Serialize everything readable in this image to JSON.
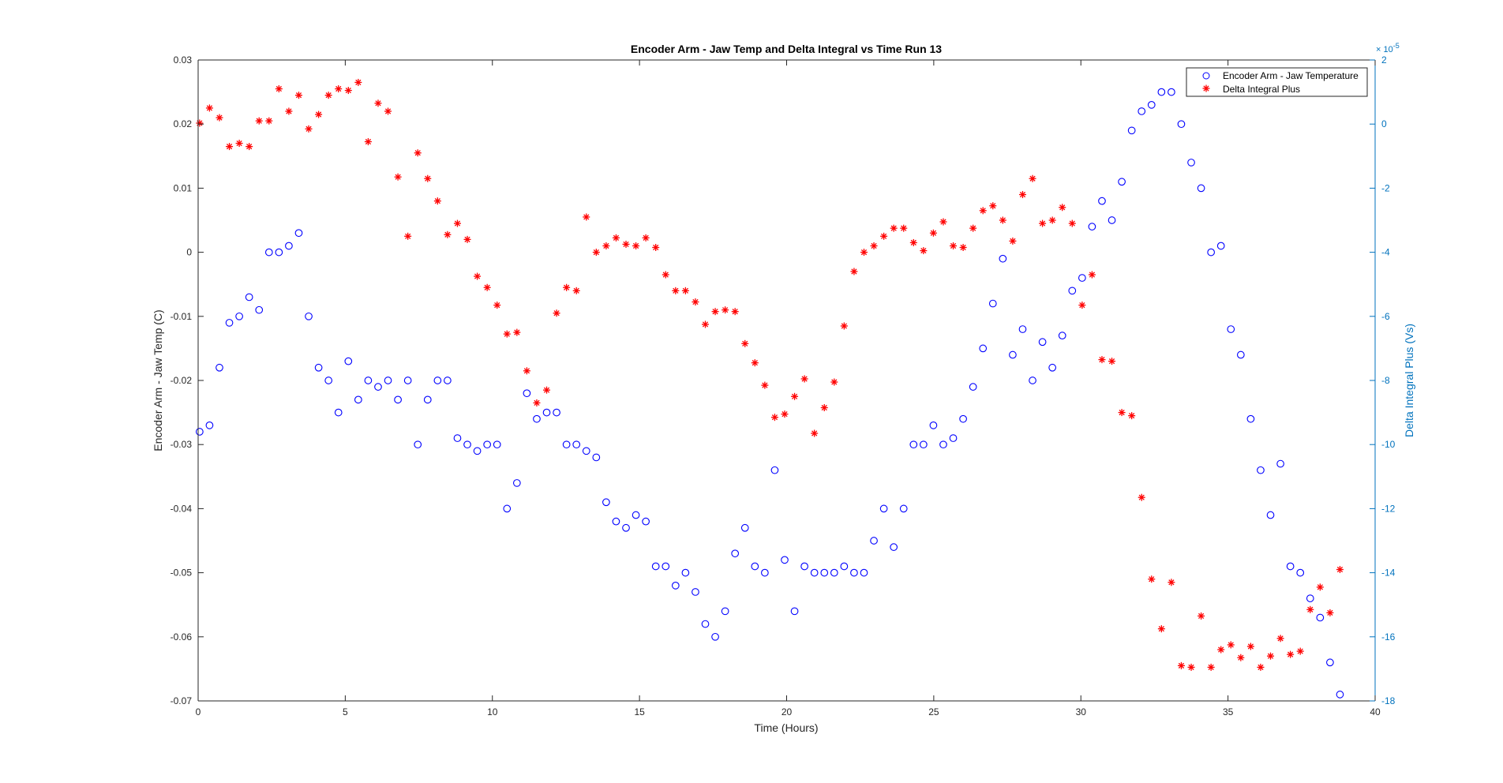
{
  "chart_data": {
    "type": "scatter",
    "title": "Encoder Arm - Jaw Temp and Delta Integral vs Time Run 13",
    "xlabel": "Time (Hours)",
    "ylabel_left": "Encoder Arm - Jaw Temp (C)",
    "ylabel_right": "Delta Integral Plus (Vs)",
    "right_exponent_label": "× 10",
    "right_exponent_power": "-5",
    "xlim": [
      0,
      40
    ],
    "ylim_left": [
      -0.07,
      0.03
    ],
    "ylim_right": [
      -18,
      2
    ],
    "x_start": 0.05,
    "x_step": 0.337,
    "xticks": [
      "0",
      "5",
      "10",
      "15",
      "20",
      "25",
      "30",
      "35",
      "40"
    ],
    "xtick_values": [
      0,
      5,
      10,
      15,
      20,
      25,
      30,
      35,
      40
    ],
    "yticks_left": [
      "0.03",
      "0.02",
      "0.01",
      "0",
      "-0.01",
      "-0.02",
      "-0.03",
      "-0.04",
      "-0.05",
      "-0.06",
      "-0.07"
    ],
    "ytick_values_left": [
      0.03,
      0.02,
      0.01,
      0,
      -0.01,
      -0.02,
      -0.03,
      -0.04,
      -0.05,
      -0.06,
      -0.07
    ],
    "yticks_right": [
      "2",
      "0",
      "-2",
      "-4",
      "-6",
      "-8",
      "-10",
      "-12",
      "-14",
      "-16",
      "-18"
    ],
    "ytick_values_right": [
      2,
      0,
      -2,
      -4,
      -6,
      -8,
      -10,
      -12,
      -14,
      -16,
      -18
    ],
    "legend_position": "top-right",
    "series": [
      {
        "name": "Encoder Arm - Jaw Temperature",
        "axis": "left",
        "marker": "circle",
        "color": "#0000ff",
        "values": [
          -0.028,
          -0.027,
          -0.018,
          -0.011,
          -0.01,
          -0.007,
          -0.009,
          0.0,
          0.0,
          0.001,
          0.003,
          -0.01,
          -0.018,
          -0.02,
          -0.025,
          -0.017,
          -0.023,
          -0.02,
          -0.021,
          -0.02,
          -0.023,
          -0.02,
          -0.03,
          -0.023,
          -0.02,
          -0.02,
          -0.029,
          -0.03,
          -0.031,
          -0.03,
          -0.03,
          -0.04,
          -0.036,
          -0.022,
          -0.026,
          -0.025,
          -0.025,
          -0.03,
          -0.03,
          -0.031,
          -0.032,
          -0.039,
          -0.042,
          -0.043,
          -0.041,
          -0.042,
          -0.049,
          -0.049,
          -0.052,
          -0.05,
          -0.053,
          -0.058,
          -0.06,
          -0.056,
          -0.047,
          -0.043,
          -0.049,
          -0.05,
          -0.034,
          -0.048,
          -0.056,
          -0.049,
          -0.05,
          -0.05,
          -0.05,
          -0.049,
          -0.05,
          -0.05,
          -0.045,
          -0.04,
          -0.046,
          -0.04,
          -0.03,
          -0.03,
          -0.027,
          -0.03,
          -0.029,
          -0.026,
          -0.021,
          -0.015,
          -0.008,
          -0.001,
          -0.016,
          -0.012,
          -0.02,
          -0.014,
          -0.018,
          -0.013,
          -0.006,
          -0.004,
          0.004,
          0.008,
          0.005,
          0.011,
          0.019,
          0.022,
          0.023,
          0.025,
          0.025,
          0.02,
          0.014,
          0.01,
          0.0,
          0.001,
          -0.012,
          -0.016,
          -0.026,
          -0.034,
          -0.041,
          -0.033,
          -0.049,
          -0.05,
          -0.054,
          -0.057,
          -0.064,
          -0.069
        ]
      },
      {
        "name": "Delta Integral Plus",
        "axis": "right",
        "marker": "asterisk",
        "color": "#ff0000",
        "scale": "1e-5",
        "values": [
          0.03,
          0.5,
          0.2,
          -0.7,
          -0.6,
          -0.7,
          0.1,
          0.1,
          1.1,
          0.4,
          0.9,
          -0.15,
          0.3,
          0.9,
          1.1,
          1.05,
          1.3,
          -0.55,
          0.65,
          0.4,
          -1.65,
          -3.5,
          -0.9,
          -1.7,
          -2.4,
          -3.45,
          -3.1,
          -3.6,
          -4.75,
          -5.1,
          -5.65,
          -6.55,
          -6.5,
          -7.7,
          -8.7,
          -8.3,
          -5.9,
          -5.1,
          -5.2,
          -2.9,
          -4.0,
          -3.8,
          -3.55,
          -3.75,
          -3.8,
          -3.55,
          -3.85,
          -4.7,
          -5.2,
          -5.2,
          -5.55,
          -6.25,
          -5.85,
          -5.8,
          -5.85,
          -6.85,
          -7.45,
          -8.15,
          -9.15,
          -9.05,
          -8.5,
          -7.95,
          -9.65,
          -8.85,
          -8.05,
          -6.3,
          -4.6,
          -4.0,
          -3.8,
          -3.5,
          -3.25,
          -3.25,
          -3.7,
          -3.95,
          -3.4,
          -3.05,
          -3.8,
          -3.85,
          -3.25,
          -2.7,
          -2.55,
          -3.0,
          -3.65,
          -2.2,
          -1.7,
          -3.1,
          -3.0,
          -2.6,
          -3.1,
          -5.65,
          -4.7,
          -7.35,
          -7.4,
          -9.0,
          -9.1,
          -11.65,
          -14.2,
          -15.75,
          -14.3,
          -16.9,
          -16.95,
          -15.35,
          -16.95,
          -16.4,
          -16.25,
          -16.65,
          -16.3,
          -16.95,
          -16.6,
          -16.05,
          -16.55,
          -16.45,
          -15.15,
          -14.45,
          -15.25,
          -13.9
        ]
      }
    ],
    "colors": {
      "axis": "#262626",
      "right_axis": "#0072bd"
    }
  }
}
